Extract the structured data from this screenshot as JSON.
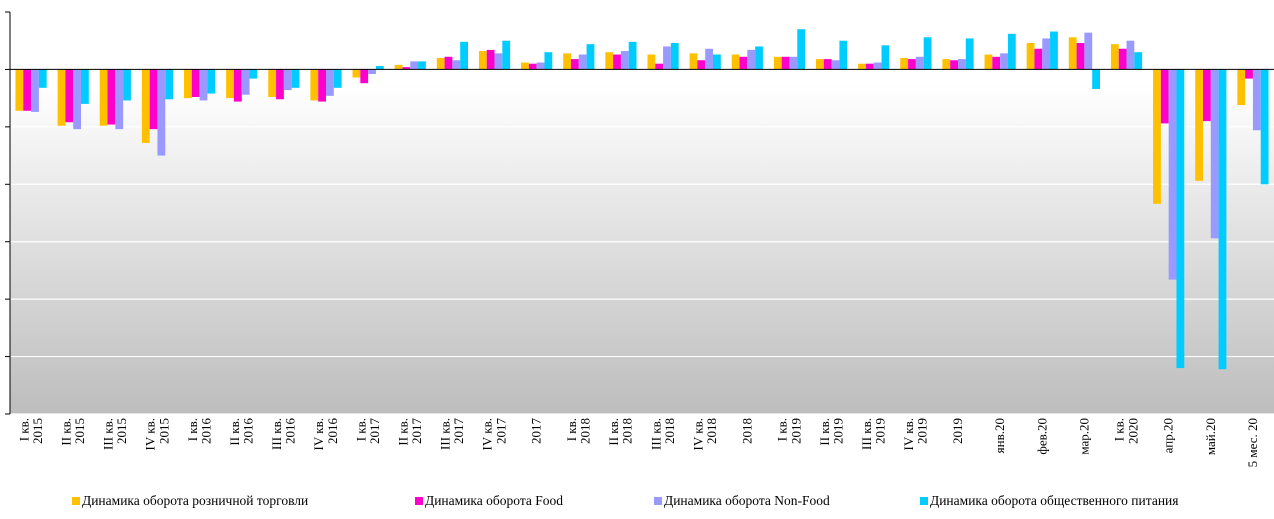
{
  "chart_data": {
    "type": "bar",
    "title": "",
    "xlabel": "",
    "ylabel": "",
    "ylim": [
      -30,
      5
    ],
    "y_gridlines": [
      5,
      0,
      -5,
      -10,
      -15,
      -20,
      -25,
      -30
    ],
    "y_tick_labels_visible": false,
    "legend_position": "bottom",
    "categories": [
      "I кв. 2015",
      "II кв. 2015",
      "III кв. 2015",
      "IV кв. 2015",
      "I кв. 2016",
      "II кв. 2016",
      "III кв. 2016",
      "IV кв. 2016",
      "I кв. 2017",
      "II кв. 2017",
      "III кв. 2017",
      "IV кв. 2017",
      "2017",
      "I кв. 2018",
      "II кв. 2018",
      "III кв. 2018",
      "IV кв. 2018",
      "2018",
      "I кв. 2019",
      "II кв. 2019",
      "III кв. 2019",
      "IV кв. 2019",
      "2019",
      "янв.20",
      "фев.20",
      "мар.20",
      "I кв. 2020",
      "апр.20",
      "май.20",
      "5 мес. 20"
    ],
    "series": [
      {
        "name": "Динамика оборота розничной торговли",
        "color": "#FFC000",
        "values": [
          -3.6,
          -4.9,
          -4.9,
          -6.4,
          -2.5,
          -2.5,
          -2.4,
          -2.7,
          -0.7,
          0.4,
          1.0,
          1.6,
          0.6,
          1.4,
          1.5,
          1.3,
          1.4,
          1.3,
          1.1,
          0.9,
          0.5,
          1.0,
          0.9,
          1.3,
          2.3,
          2.8,
          2.2,
          -11.7,
          -9.7,
          -3.1
        ]
      },
      {
        "name": "Динамика оборота Food",
        "color": "#FF00CC",
        "values": [
          -3.6,
          -4.6,
          -4.8,
          -5.2,
          -2.4,
          -2.8,
          -2.6,
          -2.8,
          -1.2,
          0.2,
          1.1,
          1.7,
          0.5,
          0.9,
          1.3,
          0.5,
          0.8,
          1.1,
          1.1,
          0.9,
          0.5,
          0.9,
          0.8,
          1.1,
          1.8,
          2.3,
          1.8,
          -4.7,
          -4.5,
          -0.8
        ]
      },
      {
        "name": "Динамика оборота Non-Food",
        "color": "#9999FF",
        "values": [
          -3.7,
          -5.2,
          -5.2,
          -7.5,
          -2.7,
          -2.2,
          -1.8,
          -2.3,
          -0.4,
          0.7,
          0.8,
          1.4,
          0.6,
          1.3,
          1.6,
          2.0,
          1.8,
          1.7,
          1.1,
          0.8,
          0.6,
          1.1,
          0.9,
          1.4,
          2.7,
          3.2,
          2.5,
          -18.3,
          -14.7,
          -5.3
        ]
      },
      {
        "name": "Динамика оборота общественного питания",
        "color": "#00CCFF",
        "values": [
          -1.6,
          -3.0,
          -2.7,
          -2.6,
          -2.1,
          -0.8,
          -1.6,
          -1.6,
          0.3,
          0.7,
          2.4,
          2.5,
          1.5,
          2.2,
          2.4,
          2.3,
          1.3,
          2.0,
          3.5,
          2.5,
          2.1,
          2.8,
          2.7,
          3.1,
          3.3,
          -1.7,
          1.5,
          -26.0,
          -26.1,
          -10.0
        ]
      }
    ]
  }
}
